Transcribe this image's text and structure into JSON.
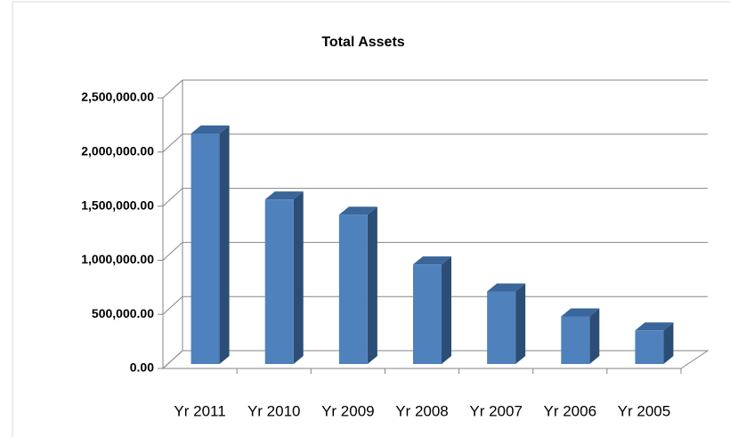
{
  "chart_data": {
    "type": "bar3d",
    "title": "Total Assets",
    "categories": [
      "Yr 2011",
      "Yr 2010",
      "Yr 2009",
      "Yr 2008",
      "Yr 2007",
      "Yr 2006",
      "Yr 2005"
    ],
    "values": [
      2130000,
      1520000,
      1380000,
      920000,
      670000,
      440000,
      310000
    ],
    "color": "#4f81bd",
    "ylim": [
      0,
      2500000
    ],
    "yticks": [
      {
        "value": 0,
        "label": "0.00"
      },
      {
        "value": 500000,
        "label": "500,000.00"
      },
      {
        "value": 1000000,
        "label": "1,000,000.00"
      },
      {
        "value": 1500000,
        "label": "1,500,000.00"
      },
      {
        "value": 2000000,
        "label": "2,000,000.00"
      },
      {
        "value": 2500000,
        "label": "2,500,000.00"
      }
    ],
    "grid": true
  }
}
